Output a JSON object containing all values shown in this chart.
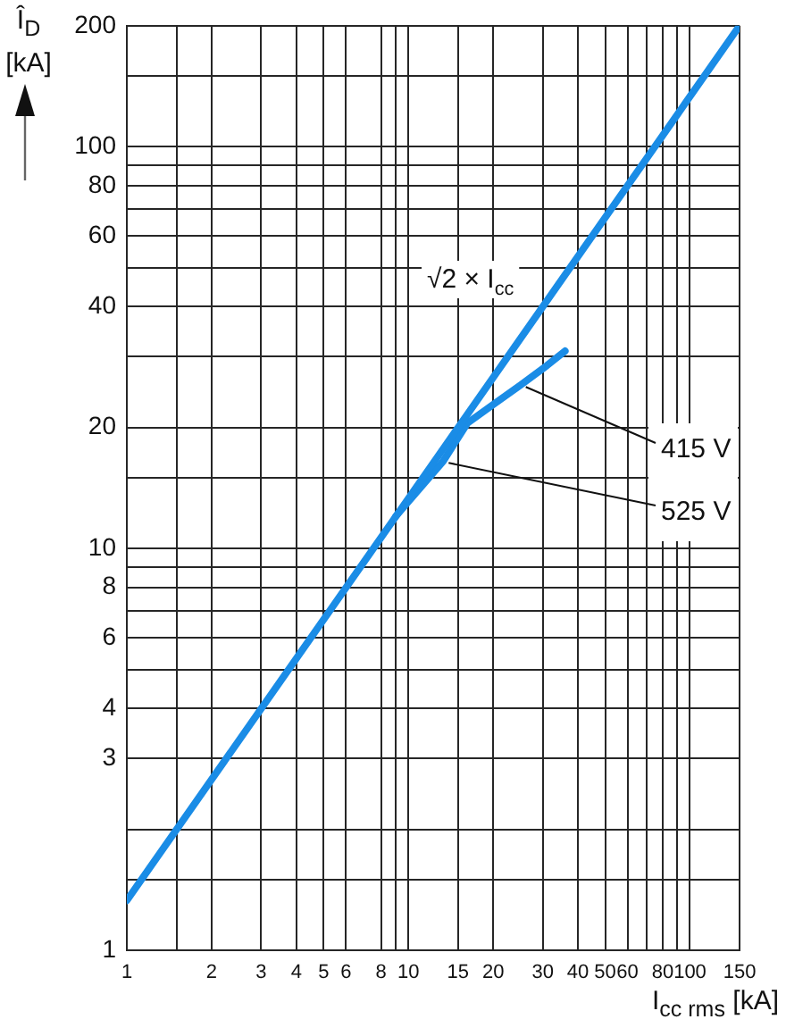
{
  "chart_data": {
    "type": "line",
    "xlabel": "I$_{cc rms}$ [kA]",
    "ylabel": "Î$_{D}$ [kA]",
    "log": "xy",
    "xlim": [
      1,
      150
    ],
    "ylim": [
      1,
      200
    ],
    "xticks": [
      1,
      {
        "value": 1.5,
        "label": null
      },
      2,
      3,
      4,
      5,
      6,
      8,
      {
        "value": 9,
        "label": null
      },
      10,
      15,
      20,
      30,
      40,
      50,
      60,
      {
        "value": 70,
        "label": null
      },
      80,
      {
        "value": 90,
        "label": null
      },
      100,
      150
    ],
    "yticks": [
      1,
      {
        "value": 1.5,
        "label": null
      },
      {
        "value": 2,
        "label": null
      },
      3,
      4,
      {
        "value": 5,
        "label": null
      },
      6,
      {
        "value": 7,
        "label": null
      },
      8,
      {
        "value": 9,
        "label": null
      },
      10,
      {
        "value": 15,
        "label": null
      },
      20,
      {
        "value": 30,
        "label": null
      },
      40,
      {
        "value": 50,
        "label": null
      },
      60,
      {
        "value": 70,
        "label": null
      },
      80,
      {
        "value": 90,
        "label": null
      },
      100,
      {
        "value": 150,
        "label": null
      },
      200
    ],
    "grid": true,
    "legend": false,
    "marker": "none",
    "line_style": "solid",
    "series": [
      {
        "name": "√2 × I$_{cc}$",
        "color": "#1a8ce6",
        "x": [
          1,
          150
        ],
        "values": [
          1.33,
          200
        ]
      },
      {
        "name": "415 V",
        "color": "#1a8ce6",
        "x": [
          9,
          13.3,
          16.2,
          20,
          25,
          31,
          36
        ],
        "values": [
          12,
          16.5,
          20.5,
          22.8,
          25.5,
          28.5,
          31
        ]
      }
    ],
    "annotations": [
      {
        "text": "525 V",
        "x": 13.3,
        "y": 16.5
      }
    ]
  }
}
